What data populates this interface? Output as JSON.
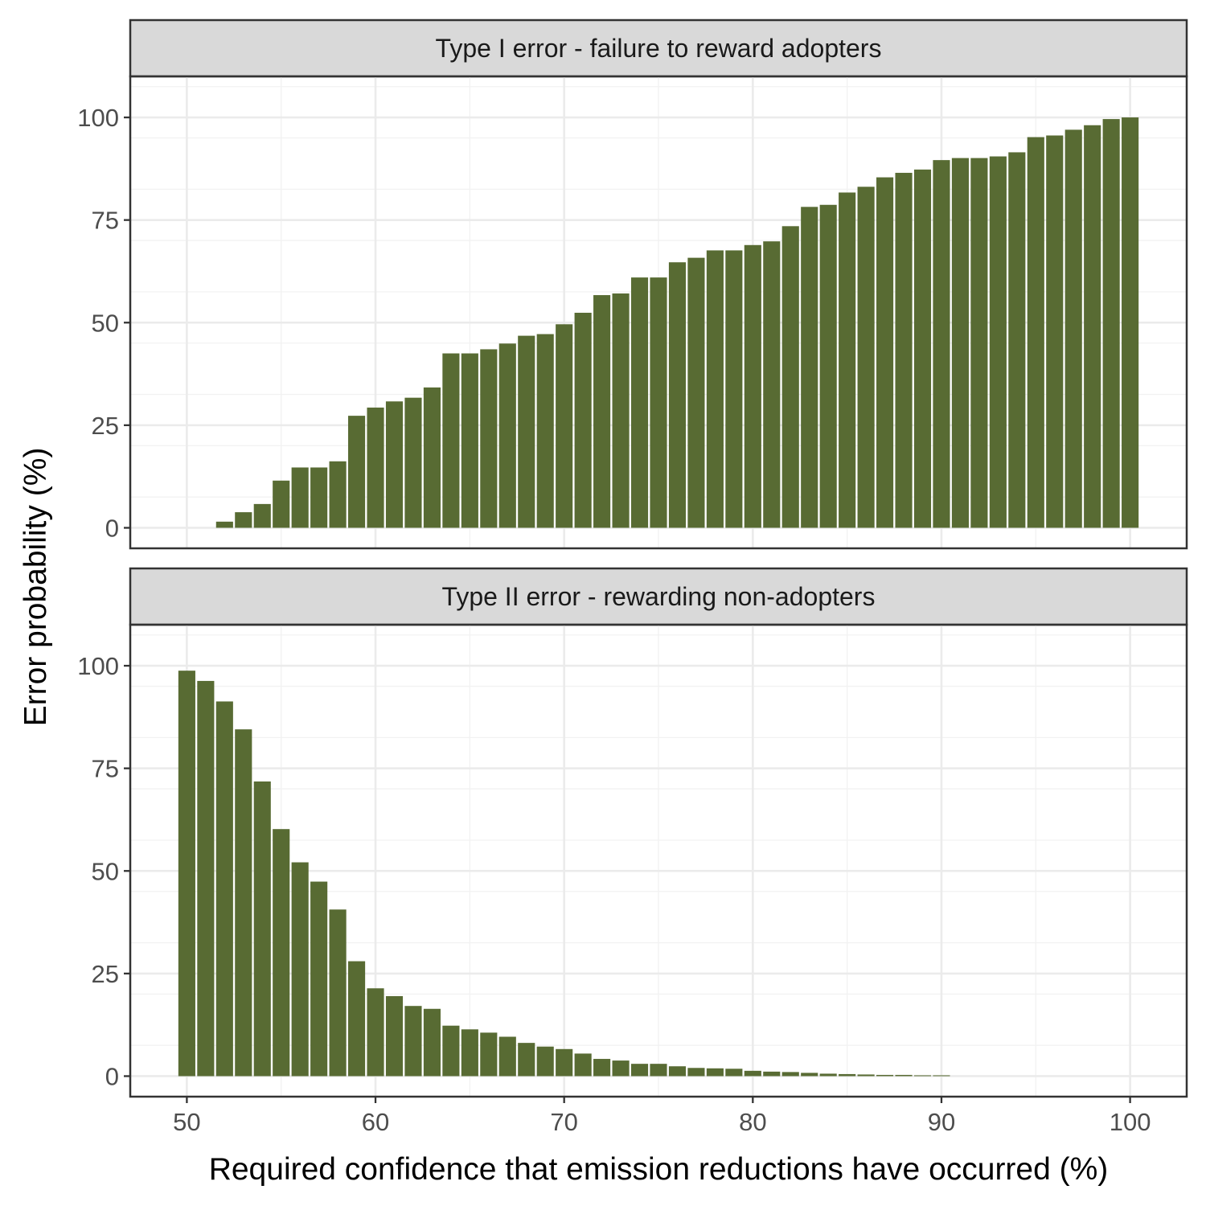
{
  "chart_data": {
    "type": "bar",
    "layout": "faceted-vertical",
    "xlabel": "Required confidence that emission reductions have occurred (%)",
    "ylabel": "Error probability (%)",
    "xlim": [
      47,
      103
    ],
    "ylim": [
      -5,
      110
    ],
    "xticks": [
      50,
      60,
      70,
      80,
      90,
      100
    ],
    "yticks": [
      0,
      25,
      50,
      75,
      100
    ],
    "bar_color": "#586b33",
    "grid": true,
    "x": [
      50,
      51,
      52,
      53,
      54,
      55,
      56,
      57,
      58,
      59,
      60,
      61,
      62,
      63,
      64,
      65,
      66,
      67,
      68,
      69,
      70,
      71,
      72,
      73,
      74,
      75,
      76,
      77,
      78,
      79,
      80,
      81,
      82,
      83,
      84,
      85,
      86,
      87,
      88,
      89,
      90,
      91,
      92,
      93,
      94,
      95,
      96,
      97,
      98,
      99,
      100
    ],
    "panels": [
      {
        "strip_label": "Type I error - failure to reward adopters",
        "values": [
          0,
          0,
          1.5,
          3.8,
          5.8,
          11.5,
          14.7,
          14.7,
          16.2,
          27.3,
          29.3,
          30.8,
          31.7,
          34.2,
          42.5,
          42.5,
          43.5,
          44.9,
          46.8,
          47.2,
          49.6,
          52.4,
          56.7,
          57.1,
          61,
          61,
          64.7,
          65.8,
          67.6,
          67.6,
          68.9,
          69.8,
          73.5,
          78.2,
          78.7,
          81.7,
          83.1,
          85.4,
          86.5,
          87.3,
          89.6,
          90.1,
          90.1,
          90.5,
          91.5,
          95.2,
          95.6,
          97,
          98.1,
          99.6,
          100
        ]
      },
      {
        "strip_label": "Type II error - rewarding non-adopters",
        "values": [
          98.8,
          96.3,
          91.3,
          84.5,
          71.8,
          60.2,
          52.1,
          47.4,
          40.6,
          28,
          21.4,
          19.5,
          17.1,
          16.4,
          12.3,
          11.4,
          10.6,
          9.6,
          8.1,
          7.2,
          6.6,
          5.5,
          4.2,
          3.8,
          3,
          3,
          2.4,
          2,
          1.9,
          1.8,
          1.3,
          1.1,
          1,
          0.8,
          0.6,
          0.5,
          0.4,
          0.3,
          0.3,
          0.2,
          0.2,
          0,
          0,
          0,
          0,
          0,
          0,
          0,
          0,
          0,
          0
        ]
      }
    ]
  }
}
